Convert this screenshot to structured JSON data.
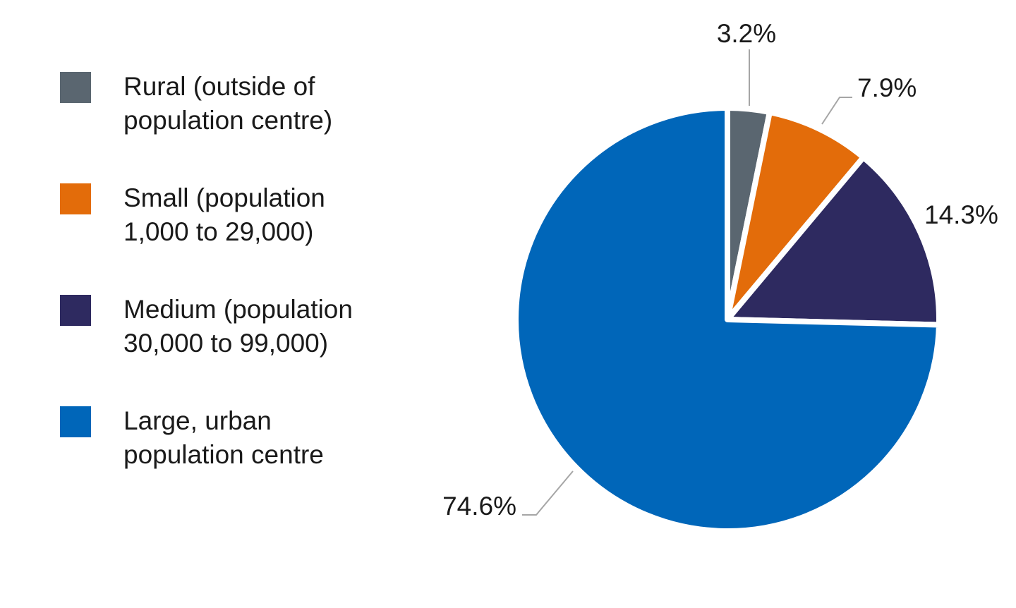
{
  "chart_data": {
    "type": "pie",
    "start_angle": "top, clockwise",
    "legend_position": "left",
    "slices": [
      {
        "name": "Rural (outside of\npopulation centre)",
        "value": 3.2,
        "label": "3.2%",
        "color": "#5a6670"
      },
      {
        "name": "Small (population\n1,000 to 29,000)",
        "value": 7.9,
        "label": "7.9%",
        "color": "#e36c0a"
      },
      {
        "name": "Medium (population\n30,000 to 99,000)",
        "value": 14.3,
        "label": "14.3%",
        "color": "#2e2a60"
      },
      {
        "name": "Large, urban\npopulation centre",
        "value": 74.6,
        "label": "74.6%",
        "color": "#0066b9"
      }
    ]
  }
}
